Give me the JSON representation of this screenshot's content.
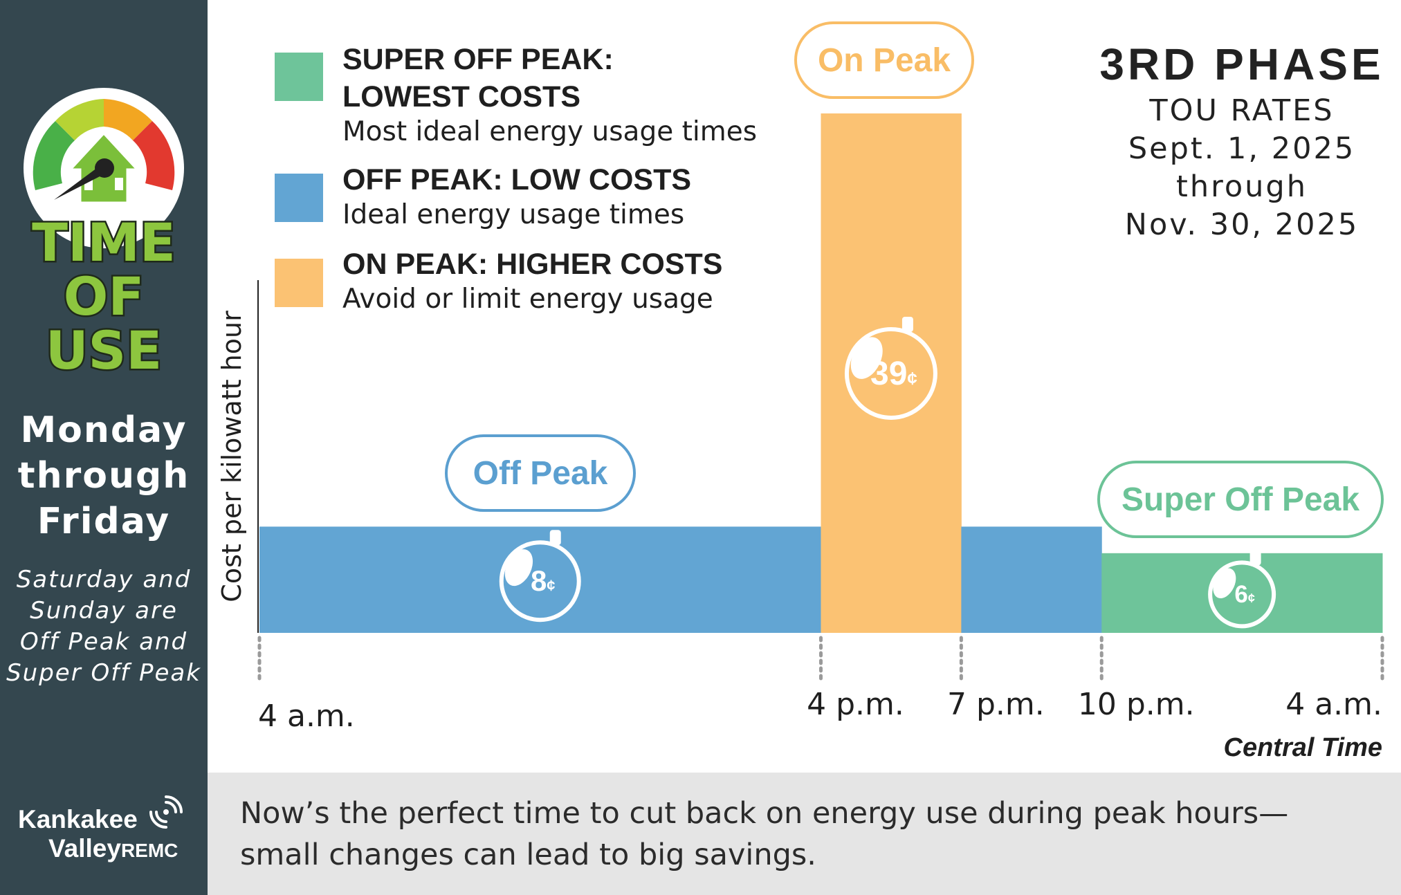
{
  "sidebar": {
    "logo_words": [
      "TIME",
      "OF",
      "USE"
    ],
    "days": [
      "Monday",
      "through",
      "Friday"
    ],
    "weekend": [
      "Saturday and",
      "Sunday are",
      "Off Peak and",
      "Super Off Peak"
    ],
    "brand_line1": "Kankakee",
    "brand_line2": "Valley",
    "brand_suffix": "REMC"
  },
  "legend": [
    {
      "title": [
        "SUPER OFF PEAK:",
        "LOWEST COSTS"
      ],
      "desc": "Most ideal energy usage times",
      "color": "#6ec49a"
    },
    {
      "title": [
        "OFF PEAK: LOW COSTS"
      ],
      "desc": "Ideal energy usage times",
      "color": "#62a5d3"
    },
    {
      "title": [
        "ON PEAK:  HIGHER COSTS"
      ],
      "desc": "Avoid or limit energy usage",
      "color": "#fbc273"
    }
  ],
  "phase": {
    "title": "3RD PHASE",
    "lines": [
      "TOU RATES",
      "Sept. 1, 2025",
      "through",
      "Nov. 30, 2025"
    ]
  },
  "footer": {
    "line1": "Now’s the perfect time to cut back on energy use during peak hours—",
    "line2": "small changes can lead to big savings."
  },
  "chart_data": {
    "type": "bar",
    "title": "3RD PHASE TOU RATES",
    "ylabel": "Cost per kilowatt hour",
    "xlabel": "Central Time",
    "x_ticks": [
      "4 a.m.",
      "4 p.m.",
      "7 p.m.",
      "10 p.m.",
      "4 a.m."
    ],
    "tick_hours": [
      4,
      16,
      19,
      22,
      28
    ],
    "unit": "¢",
    "ylim": [
      0,
      40
    ],
    "segments": [
      {
        "name": "Off Peak",
        "start_hour": 4,
        "end_hour": 16,
        "value": 8,
        "label": "8",
        "pill": "Off Peak",
        "color": "#62a5d3",
        "pill_color": "#5b9fd0"
      },
      {
        "name": "On Peak",
        "start_hour": 16,
        "end_hour": 19,
        "value": 39,
        "label": "39",
        "pill": "On Peak",
        "color": "#fbc273",
        "pill_color": "#f9bd66"
      },
      {
        "name": "Off Peak",
        "start_hour": 19,
        "end_hour": 22,
        "value": 8,
        "label": null,
        "pill": null,
        "color": "#62a5d3",
        "pill_color": null
      },
      {
        "name": "Super Off Peak",
        "start_hour": 22,
        "end_hour": 28,
        "value": 6,
        "label": "6",
        "pill": "Super Off Peak",
        "color": "#6ec49a",
        "pill_color": "#6cc397"
      }
    ]
  }
}
